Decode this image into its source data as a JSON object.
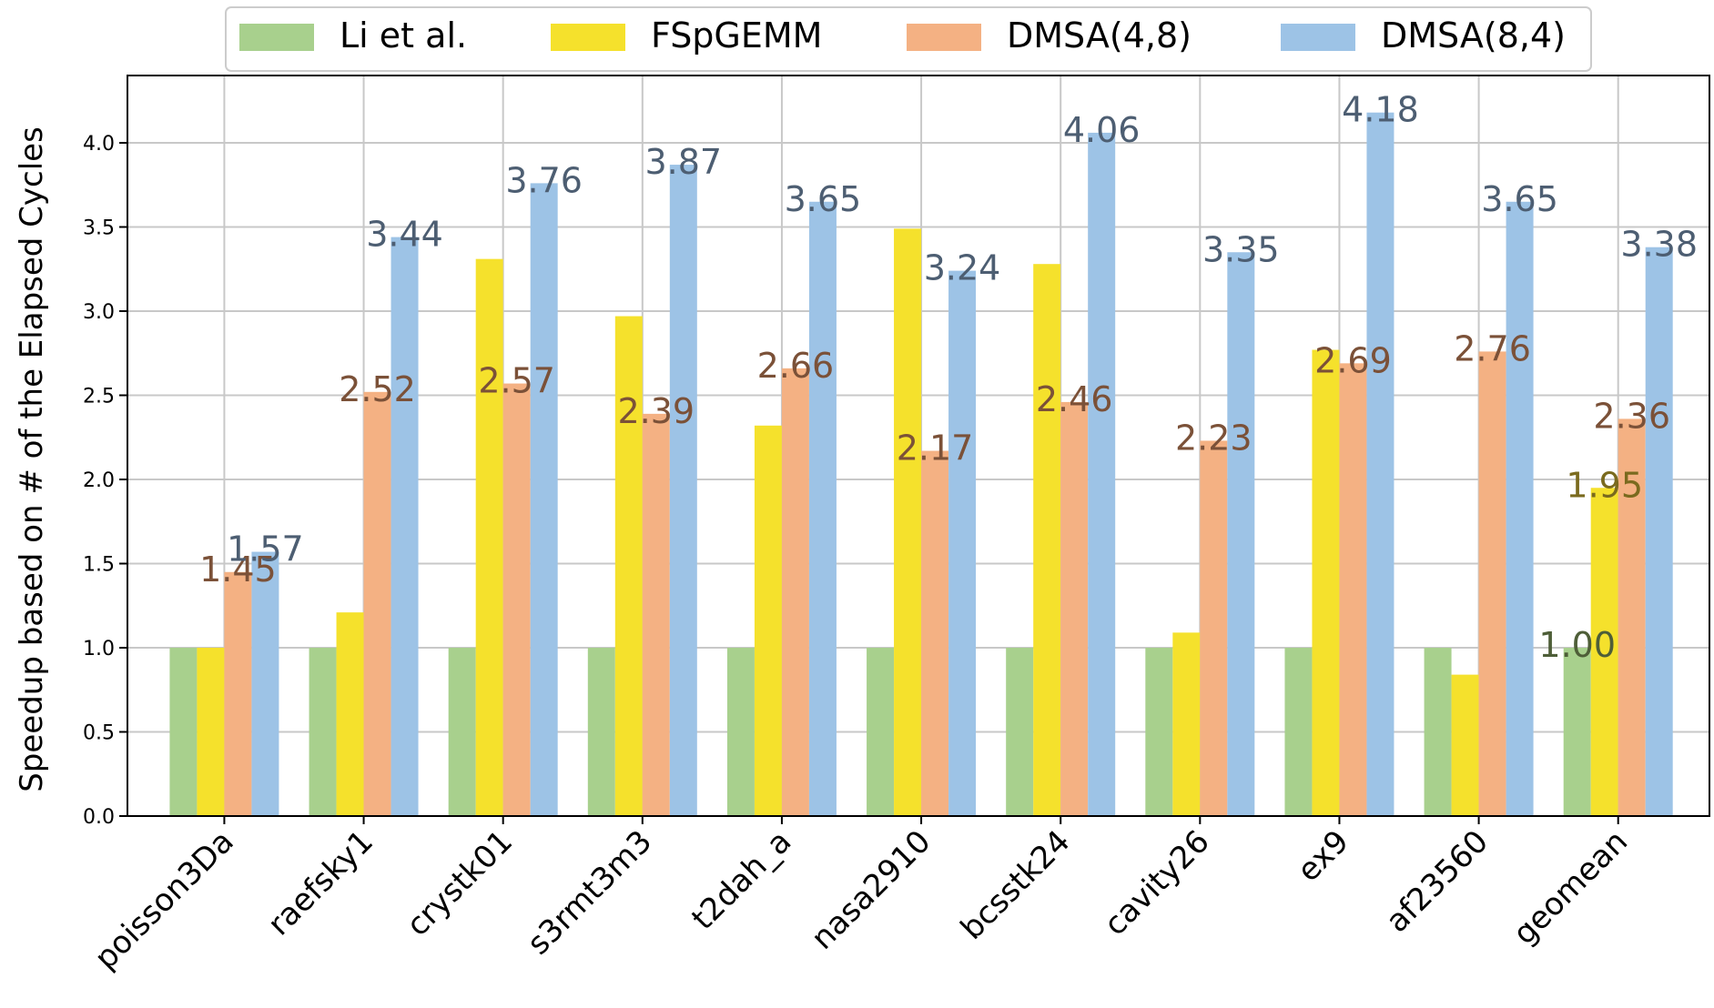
{
  "chart_data": {
    "type": "bar",
    "title": "",
    "xlabel": "",
    "ylabel": "Speedup based on # of the Elapsed Cycles",
    "ylim": [
      0,
      4.4
    ],
    "yticks": [
      "0.0",
      "0.5",
      "1.0",
      "1.5",
      "2.0",
      "2.5",
      "3.0",
      "3.5",
      "4.0"
    ],
    "grid": true,
    "legend_position": "top-center",
    "categories": [
      "poisson3Da",
      "raefsky1",
      "crystk01",
      "s3rmt3m3",
      "t2dah_a",
      "nasa2910",
      "bcsstk24",
      "cavity26",
      "ex9",
      "af23560",
      "geomean"
    ],
    "series": [
      {
        "name": "Li et al.",
        "color": "#a8d08d",
        "label_color": "#4e5e38",
        "values": [
          1.0,
          1.0,
          1.0,
          1.0,
          1.0,
          1.0,
          1.0,
          1.0,
          1.0,
          1.0,
          1.0
        ],
        "labels": [
          "",
          "",
          "",
          "",
          "",
          "",
          "",
          "",
          "",
          "",
          "1.00"
        ]
      },
      {
        "name": "FSpGEMM",
        "color": "#f5e12c",
        "label_color": "#7a6a1e",
        "values": [
          1.0,
          1.21,
          3.31,
          2.97,
          2.32,
          3.49,
          3.28,
          1.09,
          2.77,
          0.84,
          1.95
        ],
        "labels": [
          "",
          "",
          "",
          "",
          "",
          "",
          "",
          "",
          "",
          "",
          "1.95"
        ]
      },
      {
        "name": "DMSA(4,8)",
        "color": "#f4b183",
        "label_color": "#7b5138",
        "values": [
          1.45,
          2.52,
          2.57,
          2.39,
          2.66,
          2.17,
          2.46,
          2.23,
          2.69,
          2.76,
          2.36
        ],
        "labels": [
          "1.45",
          "2.52",
          "2.57",
          "2.39",
          "2.66",
          "2.17",
          "2.46",
          "2.23",
          "2.69",
          "2.76",
          "2.36"
        ]
      },
      {
        "name": "DMSA(8,4)",
        "color": "#9dc3e6",
        "label_color": "#4d5e72",
        "values": [
          1.57,
          3.44,
          3.76,
          3.87,
          3.65,
          3.24,
          4.06,
          3.35,
          4.18,
          3.65,
          3.38
        ],
        "labels": [
          "1.57",
          "3.44",
          "3.76",
          "3.87",
          "3.65",
          "3.24",
          "4.06",
          "3.35",
          "4.18",
          "3.65",
          "3.38"
        ]
      }
    ]
  }
}
